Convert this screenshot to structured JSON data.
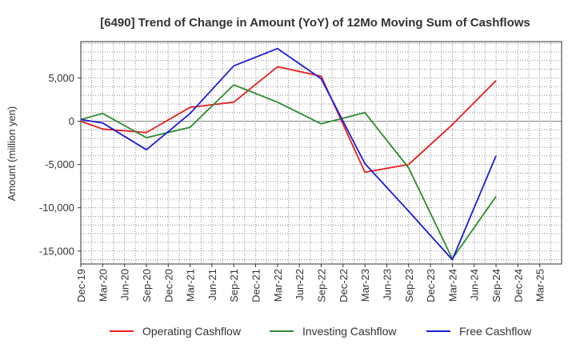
{
  "chart_data": {
    "type": "line",
    "title": "[6490]  Trend of Change in Amount (YoY) of 12Mo Moving Sum of Cashflows",
    "xlabel": "",
    "ylabel": "Amount (million yen)",
    "categories": [
      "Dec-19",
      "Mar-20",
      "Jun-20",
      "Sep-20",
      "Dec-20",
      "Mar-21",
      "Jun-21",
      "Sep-21",
      "Dec-21",
      "Mar-22",
      "Jun-22",
      "Sep-22",
      "Dec-22",
      "Mar-23",
      "Jun-23",
      "Sep-23",
      "Dec-23",
      "Mar-24",
      "Jun-24",
      "Sep-24",
      "Dec-24",
      "Mar-25"
    ],
    "ylim": [
      -16500,
      9200
    ],
    "yticks": [
      5000,
      0,
      -5000,
      -10000,
      -15000
    ],
    "ytick_labels": [
      "5,000",
      "0",
      "-5,000",
      "-10,000",
      "-15,000"
    ],
    "grid": true,
    "legend_position": "bottom",
    "series": [
      {
        "name": "Operating Cashflow",
        "color": "#e8201c",
        "values": [
          0,
          -900,
          null,
          -1300,
          null,
          1600,
          null,
          2200,
          null,
          6300,
          null,
          5200,
          null,
          -5900,
          null,
          -5000,
          null,
          -400,
          null,
          4700,
          null,
          null
        ]
      },
      {
        "name": "Investing Cashflow",
        "color": "#2e8b2e",
        "values": [
          200,
          900,
          null,
          -1900,
          null,
          -700,
          null,
          4200,
          null,
          2200,
          null,
          -300,
          null,
          1000,
          null,
          -5400,
          null,
          -15900,
          null,
          -8700,
          null,
          null
        ]
      },
      {
        "name": "Free Cashflow",
        "color": "#1c1cd6",
        "values": [
          200,
          -200,
          null,
          -3300,
          null,
          900,
          null,
          6400,
          null,
          8400,
          null,
          4900,
          null,
          -4900,
          null,
          -10400,
          null,
          -16000,
          null,
          -4000,
          null,
          null
        ]
      }
    ]
  }
}
